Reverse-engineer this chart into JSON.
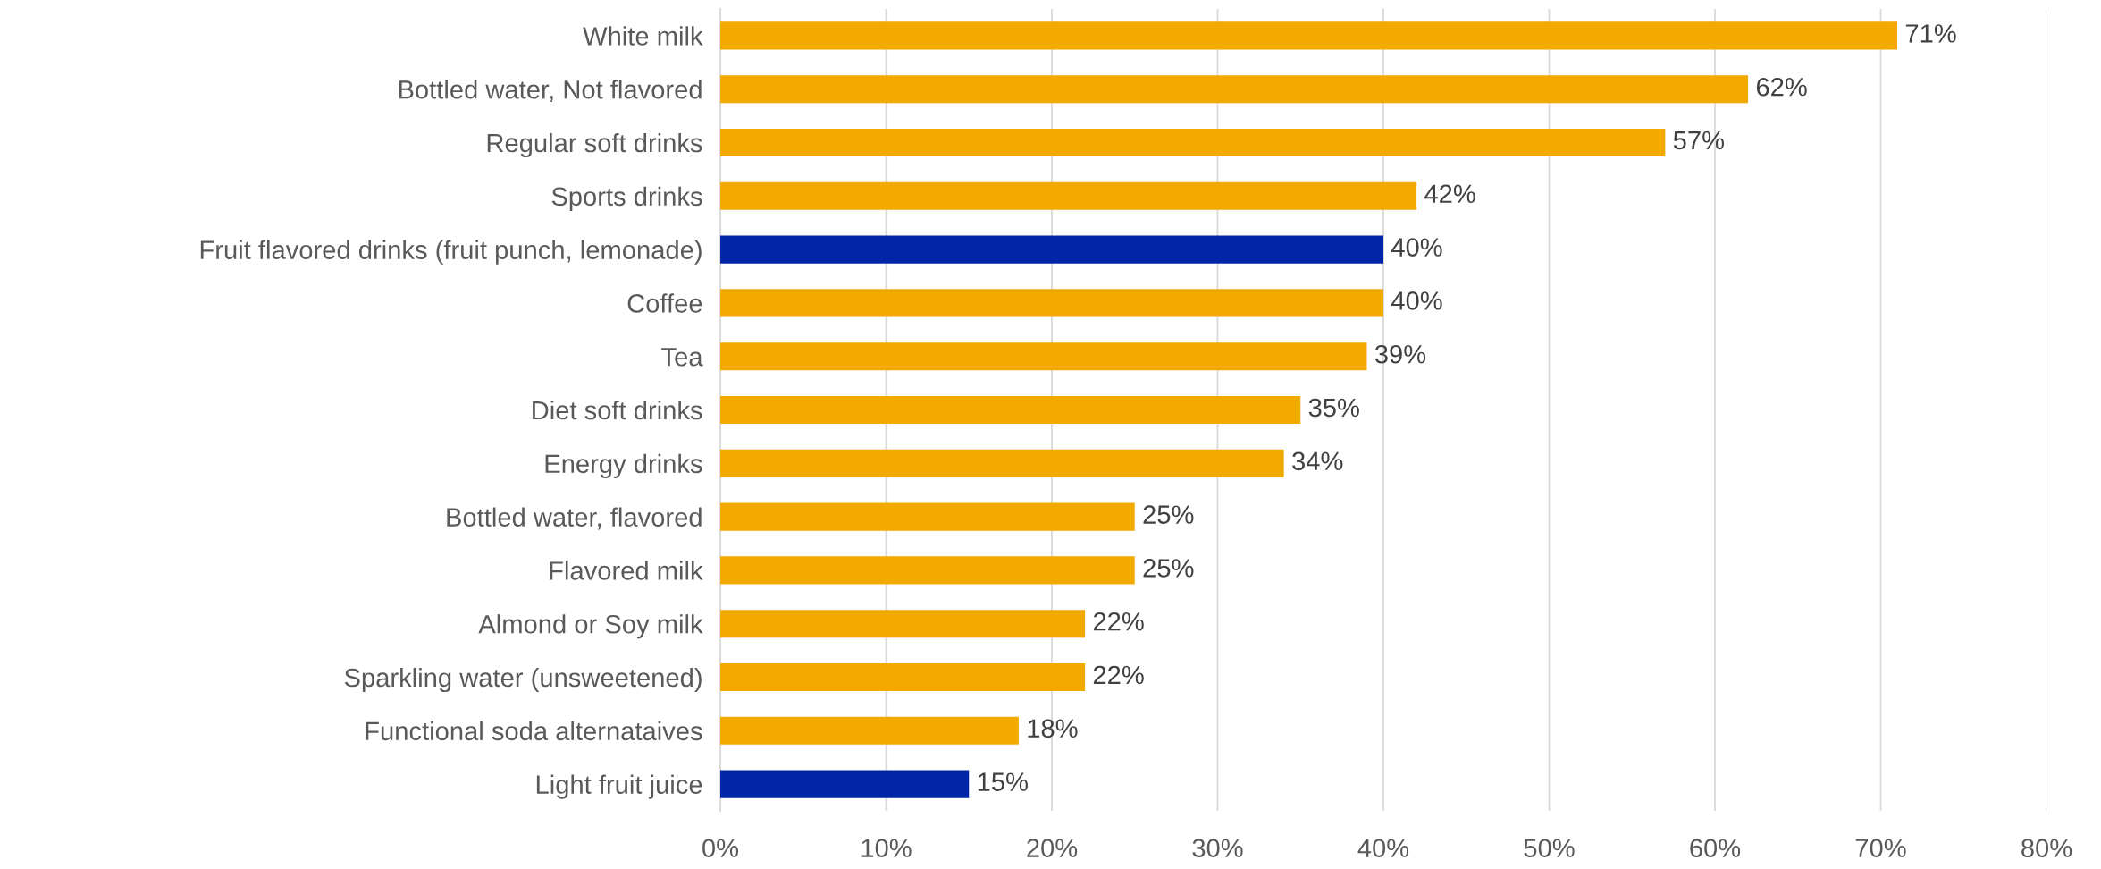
{
  "chart_data": {
    "type": "bar",
    "orientation": "horizontal",
    "categories": [
      "White milk",
      "Bottled water, Not flavored",
      "Regular soft drinks",
      "Sports drinks",
      "Fruit flavored drinks (fruit punch, lemonade)",
      "Coffee",
      "Tea",
      "Diet soft drinks",
      "Energy drinks",
      "Bottled water, flavored",
      "Flavored milk",
      "Almond or Soy milk",
      "Sparkling water (unsweetened)",
      "Functional soda alternataives",
      "Light fruit juice"
    ],
    "values": [
      71,
      62,
      57,
      42,
      40,
      40,
      39,
      35,
      34,
      25,
      25,
      22,
      22,
      18,
      15
    ],
    "value_labels": [
      "71%",
      "62%",
      "57%",
      "42%",
      "40%",
      "40%",
      "39%",
      "35%",
      "34%",
      "25%",
      "25%",
      "22%",
      "22%",
      "18%",
      "15%"
    ],
    "colors": [
      "#f2a900",
      "#f2a900",
      "#f2a900",
      "#f2a900",
      "#0025a8",
      "#f2a900",
      "#f2a900",
      "#f2a900",
      "#f2a900",
      "#f2a900",
      "#f2a900",
      "#f2a900",
      "#f2a900",
      "#f2a900",
      "#0025a8"
    ],
    "xlim": [
      0,
      80
    ],
    "xticks": [
      {
        "value": 0,
        "label": "0%"
      },
      {
        "value": 10,
        "label": "10%"
      },
      {
        "value": 20,
        "label": "20%"
      },
      {
        "value": 30,
        "label": "30%"
      },
      {
        "value": 40,
        "label": "40%"
      },
      {
        "value": 50,
        "label": "50%"
      },
      {
        "value": 60,
        "label": "60%"
      },
      {
        "value": 70,
        "label": "70%"
      },
      {
        "value": 80,
        "label": "80%"
      }
    ],
    "grid": "x"
  }
}
